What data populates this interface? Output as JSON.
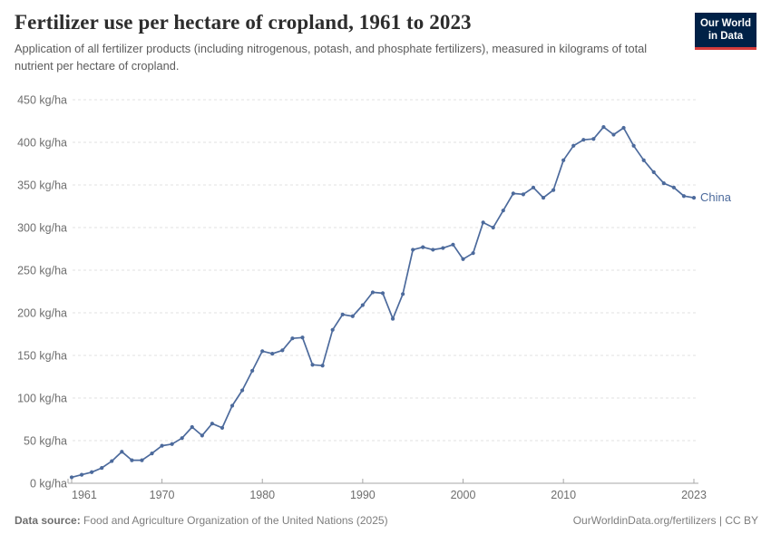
{
  "header": {
    "title": "Fertilizer use per hectare of cropland, 1961 to 2023",
    "subtitle": "Application of all fertilizer products (including nitrogenous, potash, and phosphate fertilizers), measured in kilograms of total nutrient per hectare of cropland.",
    "logo": {
      "line1": "Our World",
      "line2": "in Data"
    }
  },
  "footer": {
    "source_label": "Data source:",
    "source_text": " Food and Agriculture Organization of the United Nations (2025)",
    "link_text": "OurWorldinData.org/fertilizers | CC BY"
  },
  "colors": {
    "line": "#4c6a9c",
    "grid": "#e0e0e0",
    "axis": "#a7a7a7",
    "tick_text": "#6e6e6e",
    "logo_bg": "#002147",
    "logo_red": "#d73c3c"
  },
  "chart_data": {
    "type": "line",
    "title": "Fertilizer use per hectare of cropland, 1961 to 2023",
    "xlabel": "",
    "ylabel": "kg/ha",
    "xlim": [
      1961,
      2023
    ],
    "ylim": [
      0,
      450
    ],
    "grid": true,
    "legend_position": "end-of-line-label",
    "x_ticks": [
      1961,
      1970,
      1980,
      1990,
      2000,
      2010,
      2023
    ],
    "y_ticks": [
      0,
      50,
      100,
      150,
      200,
      250,
      300,
      350,
      400,
      450
    ],
    "y_tick_labels": [
      "0 kg/ha",
      "50 kg/ha",
      "100 kg/ha",
      "150 kg/ha",
      "200 kg/ha",
      "250 kg/ha",
      "300 kg/ha",
      "350 kg/ha",
      "400 kg/ha",
      "450 kg/ha"
    ],
    "series": [
      {
        "name": "China",
        "start_year": 1961,
        "values": [
          7,
          10,
          13,
          18,
          26,
          37,
          27,
          27,
          35,
          44,
          46,
          53,
          66,
          56,
          70,
          65,
          91,
          109,
          132,
          155,
          152,
          156,
          170,
          171,
          139,
          138,
          180,
          198,
          196,
          209,
          224,
          223,
          193,
          222,
          274,
          277,
          274,
          276,
          280,
          263,
          270,
          306,
          300,
          320,
          340,
          339,
          347,
          335,
          344,
          379,
          396,
          403,
          404,
          418,
          409,
          417,
          396,
          379,
          365,
          352,
          347,
          337,
          335
        ]
      }
    ]
  }
}
